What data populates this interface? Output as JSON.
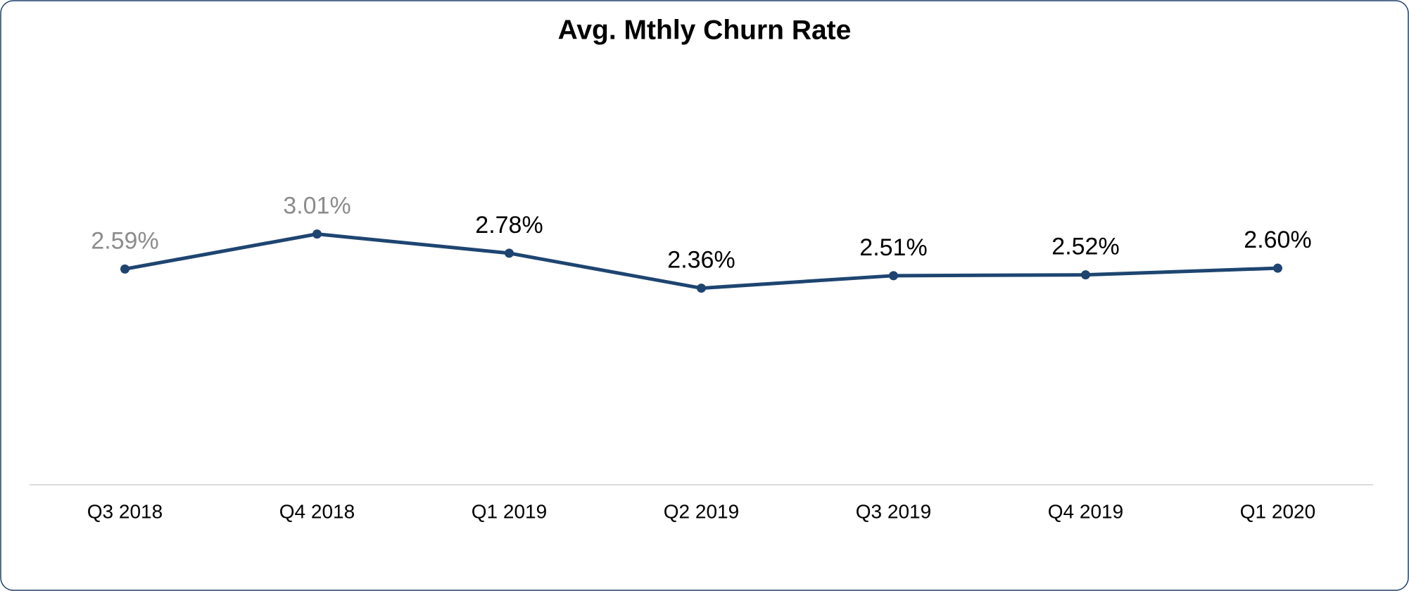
{
  "chart_data": {
    "type": "line",
    "title": "Avg. Mthly Churn Rate",
    "categories": [
      "Q3 2018",
      "Q4 2018",
      "Q1 2019",
      "Q2 2019",
      "Q3 2019",
      "Q4 2019",
      "Q1 2020"
    ],
    "series": [
      {
        "color": "#1e4571",
        "values": [
          2.59,
          3.01,
          2.78,
          2.36,
          2.51,
          2.52,
          2.6
        ],
        "value_labels": [
          "2.59%",
          "3.01%",
          "2.78%",
          "2.36%",
          "2.51%",
          "2.52%",
          "2.60%"
        ],
        "value_label_colors": [
          "#8c8c8c",
          "#8c8c8c",
          "#000000",
          "#000000",
          "#000000",
          "#000000",
          "#000000"
        ]
      }
    ],
    "ylim": [
      0,
      5
    ]
  }
}
